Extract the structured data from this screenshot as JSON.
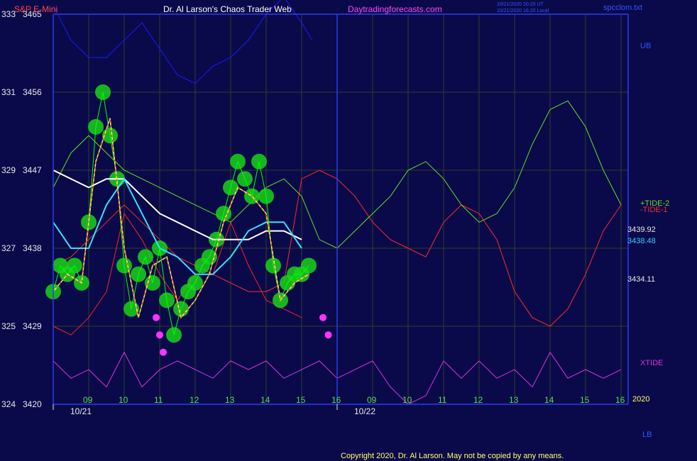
{
  "header": {
    "instrument": "S&P E-Mini",
    "title": "Dr. Al Larson's Chaos Trader Web",
    "site": "Daytradingforecasts.com",
    "timestamp_line1": "10/21/2020 20:20 UT",
    "timestamp_line2": "10/21/2020 16:20 Local",
    "file": "spcclom.txt"
  },
  "colors": {
    "background": "#0a0a4a",
    "grid": "#2f3f28",
    "frame": "#2a3cf0",
    "price_dots": "#19d419",
    "price_line": "#00ff00",
    "smooth_yellow": "#ffff00",
    "smooth_magenta": "#ff00ff",
    "ma_cyan": "#33e0ff",
    "ma_white": "#ffffff",
    "band_upper": "#1a1aff",
    "band_lower": "#ff2020",
    "tide1": "#ff2a2a",
    "tide2": "#66dd22",
    "xtide": "#dd33dd",
    "low_dots": "#ff33ff",
    "text_red": "#ff4444",
    "text_white": "#e8e8e8",
    "text_magenta": "#ff44ff",
    "text_blue": "#3355ff",
    "text_cyan": "#33d0ff",
    "text_green": "#55dd55",
    "text_yellow": "#ffff66"
  },
  "y_axis_labels": [
    {
      "left": "333",
      "right": "3465"
    },
    {
      "left": "331",
      "right": "3456"
    },
    {
      "left": "329",
      "right": "3447"
    },
    {
      "left": "327",
      "right": "3438"
    },
    {
      "left": "325",
      "right": "3429"
    },
    {
      "left": "324",
      "right": "3420"
    }
  ],
  "x_axis": {
    "hour_labels": [
      "09",
      "10",
      "11",
      "12",
      "13",
      "14",
      "15",
      "16",
      "09",
      "10",
      "11",
      "12",
      "13",
      "14",
      "15",
      "16"
    ],
    "date_labels": [
      "10/21",
      "10/22"
    ],
    "year_label": "2020"
  },
  "right_labels": {
    "ub": "UB",
    "tide2": "+TIDE-2",
    "tide1": "-TIDE-1",
    "value1": "3439.92",
    "value2": "3438.48",
    "value3": "3434.11",
    "xtide": "XTIDE",
    "lb": "LB"
  },
  "copyright": "Copyright 2020, Dr. Al Larson. May not be copied by any means.",
  "chart_data": {
    "type": "line",
    "title": "S&P E-Mini",
    "ylim": [
      3420,
      3465
    ],
    "y_ticks": [
      3420,
      3429,
      3438,
      3447,
      3456,
      3465
    ],
    "session_hours_per_day": 8,
    "series": [
      {
        "name": "price",
        "x": [
          0,
          0.2,
          0.4,
          0.6,
          0.8,
          1.0,
          1.2,
          1.4,
          1.6,
          1.8,
          2.0,
          2.2,
          2.4,
          2.6,
          2.8,
          3.0,
          3.2,
          3.4,
          3.6,
          3.8,
          4.0,
          4.2,
          4.4,
          4.6,
          4.8,
          5.0,
          5.2,
          5.4,
          5.6,
          5.8,
          6.0,
          6.2,
          6.4,
          6.6,
          6.8,
          7.0,
          7.2
        ],
        "values": [
          3433,
          3436,
          3435,
          3436,
          3434,
          3441,
          3452,
          3456,
          3451,
          3446,
          3436,
          3431,
          3435,
          3437,
          3434,
          3438,
          3432,
          3428,
          3431,
          3433,
          3434,
          3436,
          3437,
          3439,
          3442,
          3445,
          3448,
          3446,
          3444,
          3448,
          3444,
          3436,
          3432,
          3434,
          3435,
          3435,
          3436
        ]
      },
      {
        "name": "smooth",
        "x": [
          0,
          0.4,
          0.8,
          1.2,
          1.6,
          2.0,
          2.4,
          2.8,
          3.2,
          3.6,
          4.0,
          4.4,
          4.8,
          5.2,
          5.6,
          6.0,
          6.4,
          6.8,
          7.2
        ],
        "values": [
          3433,
          3435,
          3434,
          3448,
          3453,
          3438,
          3430,
          3436,
          3437,
          3430,
          3432,
          3435,
          3441,
          3445,
          3444,
          3442,
          3432,
          3434,
          3435
        ]
      },
      {
        "name": "moving_average_short",
        "x": [
          0,
          0.5,
          1.0,
          1.5,
          2.0,
          2.5,
          3.0,
          3.5,
          4.0,
          4.5,
          5.0,
          5.5,
          6.0,
          6.5,
          7.0
        ],
        "values": [
          3441,
          3438,
          3438,
          3443,
          3446,
          3442,
          3438,
          3437,
          3435,
          3435,
          3437,
          3440,
          3441,
          3441,
          3438
        ]
      },
      {
        "name": "moving_average_long",
        "x": [
          0,
          0.5,
          1.0,
          1.5,
          2.0,
          2.5,
          3.0,
          3.5,
          4.0,
          4.5,
          5.0,
          5.5,
          6.0,
          6.5,
          7.0
        ],
        "values": [
          3447,
          3446,
          3445,
          3446,
          3446,
          3444,
          3442,
          3441,
          3440,
          3439,
          3439,
          3439,
          3440,
          3440,
          3439
        ]
      },
      {
        "name": "upper_band",
        "x": [
          0,
          0.5,
          1.0,
          1.5,
          2.0,
          2.5,
          3.0,
          3.5,
          4.0,
          4.5,
          5.0,
          5.5,
          6.0,
          6.5,
          7.0,
          7.3
        ],
        "values": [
          3466,
          3462,
          3460,
          3460,
          3462,
          3464,
          3461,
          3458,
          3457,
          3459,
          3460,
          3462,
          3465,
          3467,
          3464,
          3462
        ]
      },
      {
        "name": "lower_band",
        "x": [
          0,
          0.5,
          1.0,
          1.5,
          2.0,
          2.5,
          3.0,
          3.5,
          4.0,
          4.5,
          5.0,
          5.5,
          6.0,
          6.5,
          7.0
        ],
        "values": [
          3429,
          3428,
          3430,
          3433,
          3442,
          3439,
          3435,
          3432,
          3435,
          3435,
          3441,
          3436,
          3432,
          3431,
          3430
        ]
      },
      {
        "name": "TIDE-1",
        "x": [
          0,
          0.5,
          1.0,
          1.5,
          2.0,
          2.5,
          3.0,
          3.5,
          4.0,
          4.5,
          5.0,
          5.5,
          6.0,
          6.5,
          7.0,
          7.5,
          8.0,
          8.5,
          9.0,
          9.5,
          10.0,
          10.5,
          11.0,
          11.5,
          12.0,
          12.5,
          13.0,
          13.5,
          14.0,
          14.5,
          15.0,
          15.5,
          16.0
        ],
        "values": [
          3436,
          3437,
          3439,
          3441,
          3443,
          3441,
          3439,
          3437,
          3436,
          3435,
          3434,
          3433,
          3433,
          3434,
          3446,
          3447,
          3446,
          3444,
          3441,
          3439,
          3438,
          3437,
          3441,
          3443,
          3442,
          3439,
          3433,
          3430,
          3429,
          3431,
          3435,
          3440,
          3443
        ]
      },
      {
        "name": "TIDE-2",
        "x": [
          0,
          0.5,
          1.0,
          1.5,
          2.0,
          2.5,
          3.0,
          3.5,
          4.0,
          4.5,
          5.0,
          5.5,
          6.0,
          6.5,
          7.0,
          7.5,
          8.0,
          8.5,
          9.0,
          9.5,
          10.0,
          10.5,
          11.0,
          11.5,
          12.0,
          12.5,
          13.0,
          13.5,
          14.0,
          14.5,
          15.0,
          15.5,
          16.0
        ],
        "values": [
          3445,
          3449,
          3451,
          3449,
          3447,
          3446,
          3445,
          3444,
          3443,
          3442,
          3441,
          3443,
          3445,
          3446,
          3444,
          3439,
          3438,
          3440,
          3442,
          3444,
          3447,
          3448,
          3446,
          3443,
          3441,
          3442,
          3445,
          3450,
          3454,
          3455,
          3452,
          3447,
          3443
        ]
      },
      {
        "name": "XTIDE",
        "x": [
          0,
          0.5,
          1.0,
          1.5,
          2.0,
          2.5,
          3.0,
          3.5,
          4.0,
          4.5,
          5.0,
          5.5,
          6.0,
          6.5,
          7.0,
          7.5,
          8.0,
          8.5,
          9.0,
          9.5,
          10.0,
          10.5,
          11.0,
          11.5,
          12.0,
          12.5,
          13.0,
          13.5,
          14.0,
          14.5,
          15.0,
          15.5,
          16.0
        ],
        "values": [
          3425,
          3423,
          3424,
          3422,
          3426,
          3422,
          3424,
          3425,
          3424,
          3423,
          3425,
          3424,
          3425,
          3423,
          3424,
          3425,
          3423,
          3424,
          3425,
          3422,
          3420,
          3421,
          3425,
          3423,
          3425,
          3423,
          3424,
          3422,
          3426,
          3423,
          3424,
          3423,
          3424
        ]
      }
    ],
    "x_labels": [
      "09",
      "10",
      "11",
      "12",
      "13",
      "14",
      "15",
      "16",
      "09",
      "10",
      "11",
      "12",
      "13",
      "14",
      "15",
      "16"
    ],
    "grid": true,
    "legend": "right"
  }
}
